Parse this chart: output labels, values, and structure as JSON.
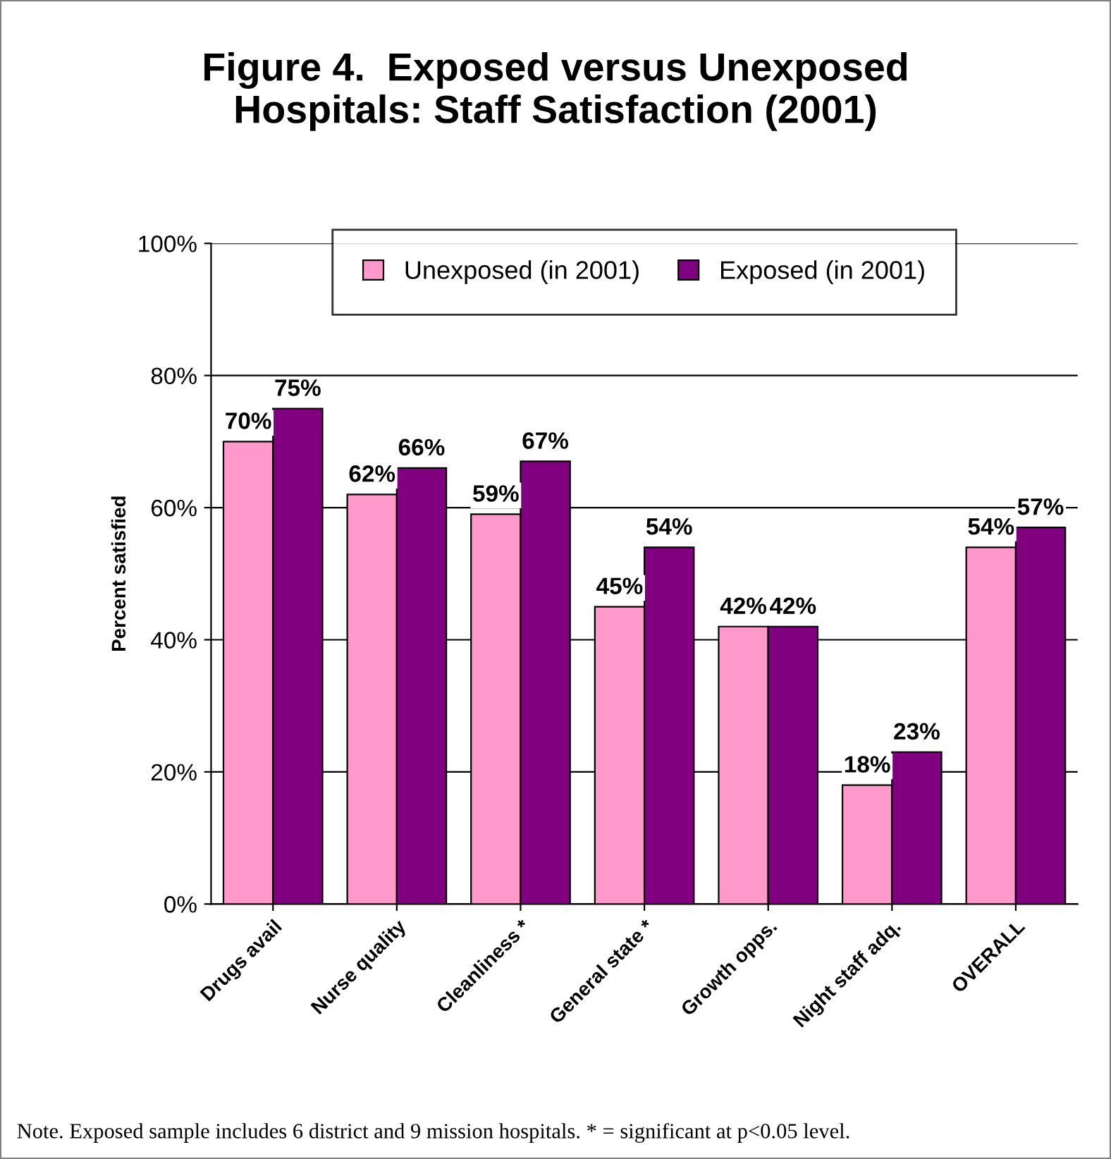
{
  "chart_data": {
    "type": "bar",
    "title": "Figure 4.  Exposed versus Unexposed\nHospitals: Staff Satisfaction (2001)",
    "ylabel": "Percent satisfied",
    "categories": [
      "Drugs avail",
      "Nurse quality",
      "Cleanliness *",
      "General state *",
      "Growth opps.",
      "Night staff adq.",
      "OVERALL"
    ],
    "series": [
      {
        "name": "Unexposed (in 2001)",
        "color": "#ff99cc",
        "values": [
          70,
          62,
          59,
          45,
          42,
          18,
          54
        ],
        "value_labels": [
          "70%",
          "62%",
          "59%",
          "45%",
          "42%",
          "18%",
          "54%"
        ]
      },
      {
        "name": "Exposed (in 2001)",
        "color": "#800080",
        "values": [
          75,
          66,
          67,
          54,
          42,
          23,
          57
        ],
        "value_labels": [
          "75%",
          "66%",
          "67%",
          "54%",
          "42%",
          "23%",
          "57%"
        ]
      }
    ],
    "ylim": [
      0,
      100
    ],
    "yticks": [
      {
        "value": 0,
        "label": "0%"
      },
      {
        "value": 20,
        "label": "20%"
      },
      {
        "value": 40,
        "label": "40%"
      },
      {
        "value": 60,
        "label": "60%"
      },
      {
        "value": 80,
        "label": "80%"
      },
      {
        "value": 100,
        "label": "100%"
      }
    ],
    "grid": "y",
    "legend": "top",
    "annotations": [
      "Note. Exposed sample includes 6 district and 9 mission hospitals. * = significant at p<0.05 level."
    ]
  }
}
